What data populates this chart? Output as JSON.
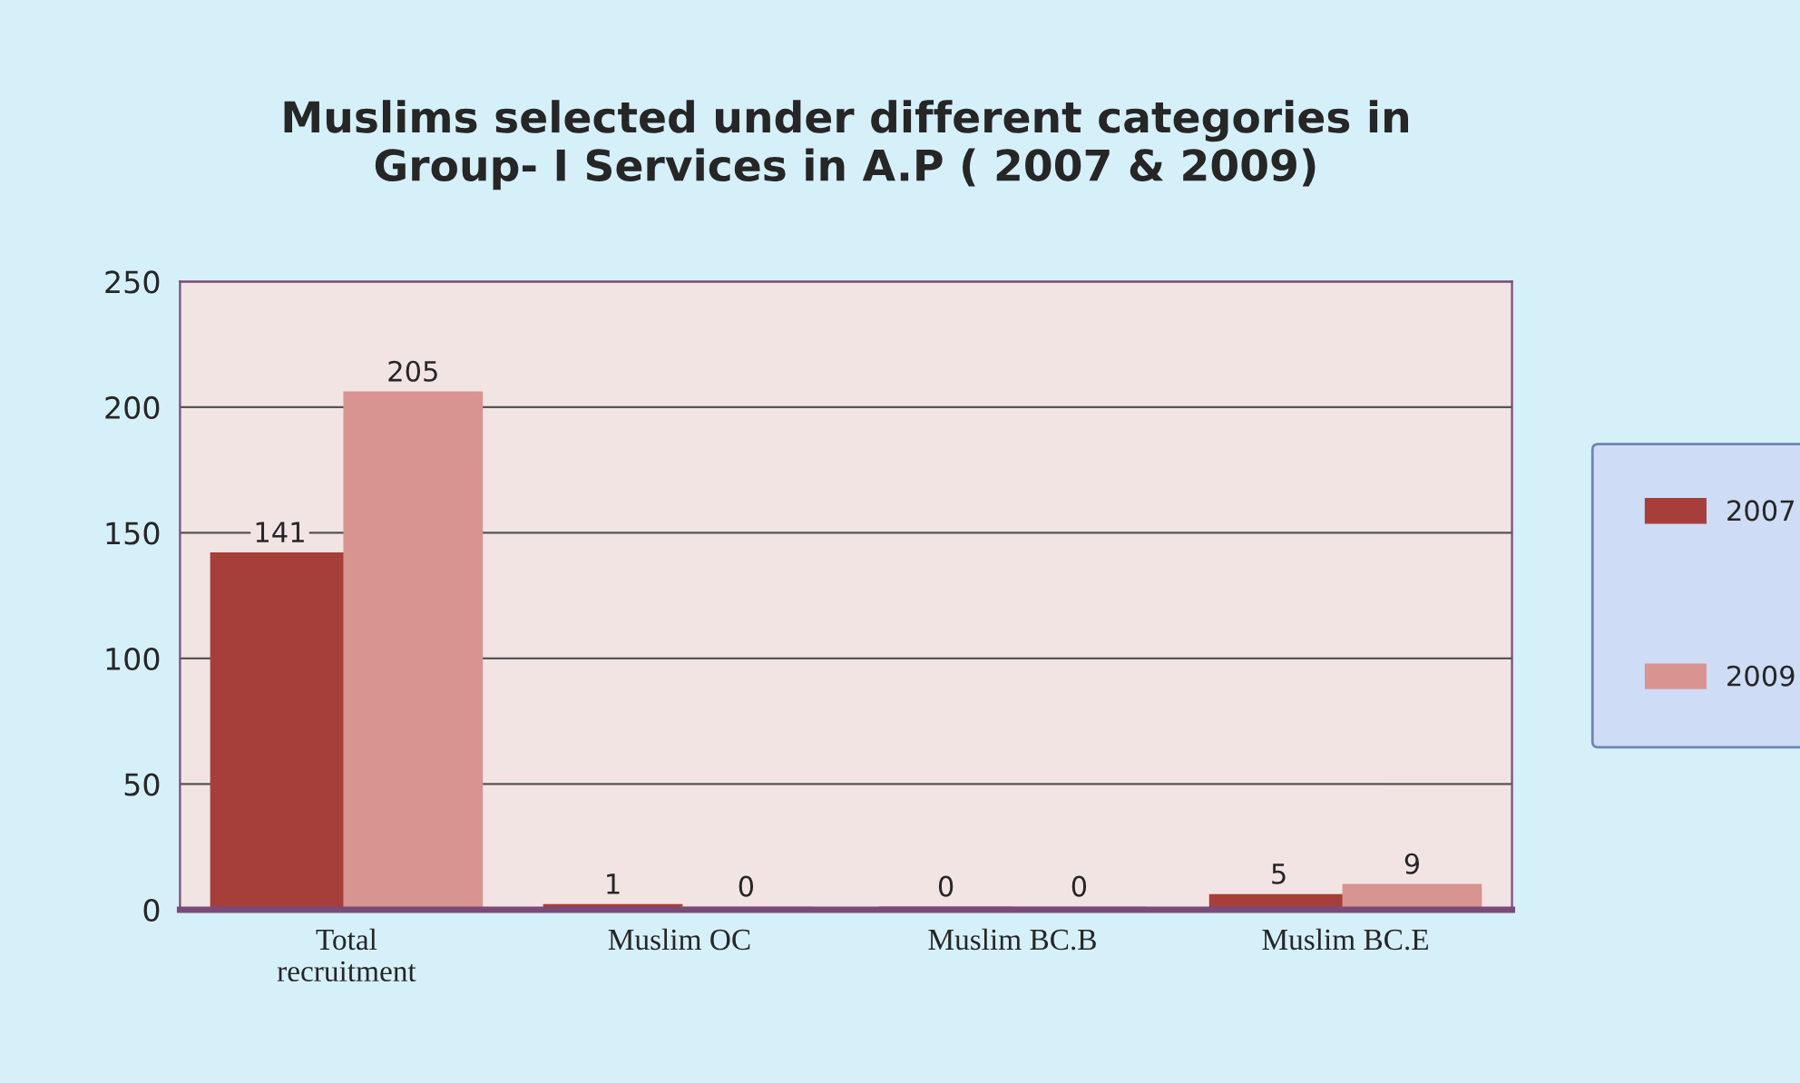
{
  "chart_data": {
    "type": "bar",
    "title": "Muslims selected under different categories in\nGroup- I Services in A.P ( 2007 & 2009)",
    "categories": [
      "Total\nrecruitment",
      "Muslim OC",
      "Muslim BC.B",
      "Muslim BC.E"
    ],
    "series": [
      {
        "name": "2007",
        "color": "#a63f3a",
        "values": [
          141,
          1,
          0,
          5
        ]
      },
      {
        "name": "2009",
        "color": "#d89490",
        "values": [
          205,
          0,
          0,
          9
        ]
      }
    ],
    "ylim": [
      0,
      250
    ],
    "yticks": [
      0,
      50,
      100,
      150,
      200,
      250
    ],
    "grid": "y",
    "legend": "right",
    "data_labels": true
  }
}
